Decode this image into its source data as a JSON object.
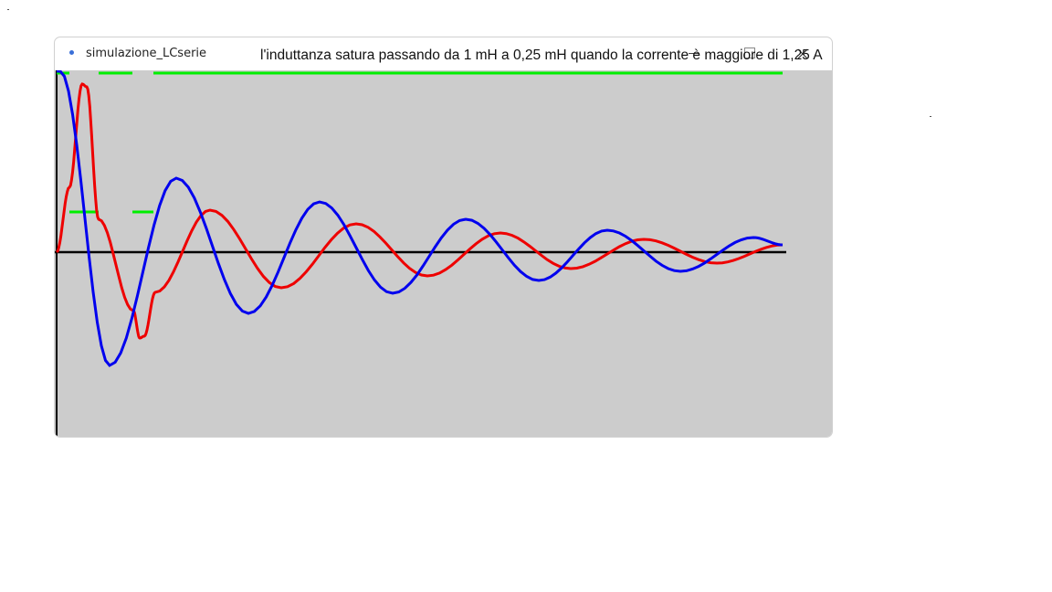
{
  "window": {
    "title": "simulazione_LCserie",
    "controls": [
      "minimize",
      "maximize",
      "close"
    ]
  },
  "annotation": "l'induttanza satura passando da 1 mH a 0,25 mH quando la corrente è maggiore di 1,25 A",
  "colors": {
    "current": "#0000ee",
    "voltage": "#ee0000",
    "inductance_indicator": "#00ee00",
    "axis": "#000000",
    "plot_bg": "#cccccc"
  }
}
